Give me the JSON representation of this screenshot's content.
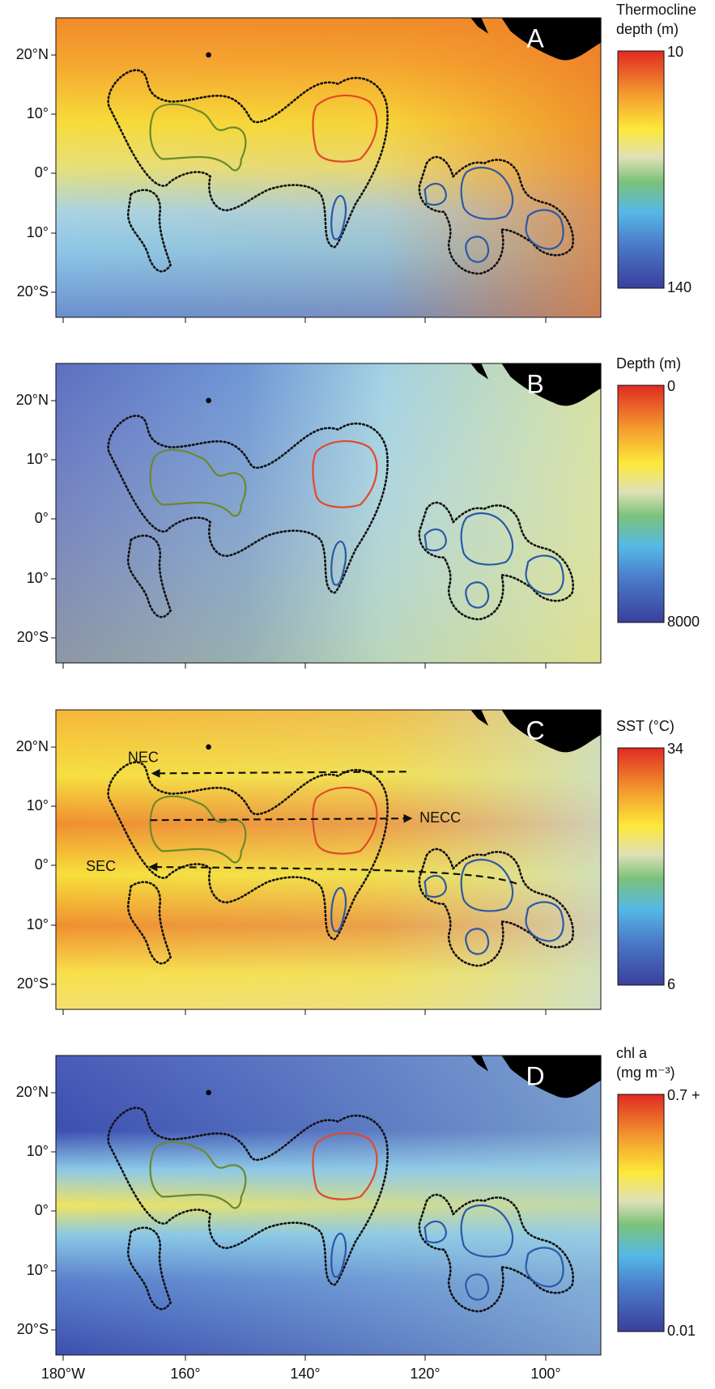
{
  "figure": {
    "lat_ticks": [
      "20°N",
      "10°",
      "0°",
      "10°",
      "20°S"
    ],
    "lon_ticks": [
      "180°W",
      "160°",
      "140°",
      "120°",
      "100°"
    ],
    "panels": [
      {
        "label": "A",
        "colorbar": {
          "title": [
            "Thermocline",
            "depth (m)"
          ],
          "top": "10",
          "bottom": "140"
        }
      },
      {
        "label": "B",
        "colorbar": {
          "title": [
            "Depth (m)"
          ],
          "top": "0",
          "bottom": "8000"
        }
      },
      {
        "label": "C",
        "colorbar": {
          "title": [
            "SST (°C)"
          ],
          "top": "34",
          "bottom": "6"
        },
        "currents": [
          "NEC",
          "NECC",
          "SEC"
        ]
      },
      {
        "label": "D",
        "colorbar": {
          "title": [
            "chl a",
            "(mg m⁻³)"
          ],
          "top": "0.7 +",
          "bottom": "0.01"
        }
      }
    ]
  }
}
